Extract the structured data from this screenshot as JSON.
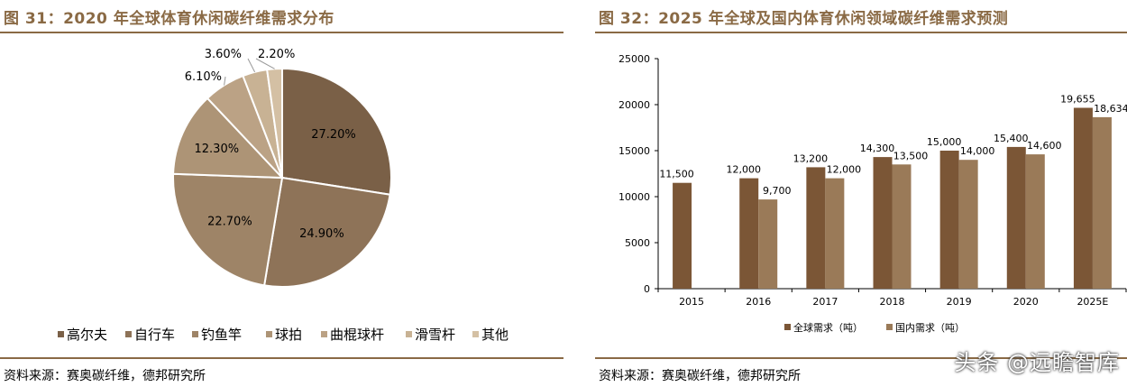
{
  "left": {
    "title": "图 31：2020 年全球体育休闲碳纤维需求分布",
    "source": "资料来源：赛奥碳纤维，德邦研究所"
  },
  "right": {
    "title": "图 32：2025 年全球及国内体育休闲领域碳纤维需求预测",
    "source": "资料来源：赛奥碳纤维，德邦研究所"
  },
  "watermark": "头条 @远瞻智库",
  "chart_data": [
    {
      "type": "pie",
      "categories": [
        "高尔夫",
        "自行车",
        "钓鱼竿",
        "球拍",
        "曲棍球杆",
        "滑雪杆",
        "其他"
      ],
      "values": [
        27.2,
        24.9,
        22.7,
        12.3,
        6.1,
        3.6,
        2.2
      ],
      "data_labels": [
        "27.20%",
        "24.90%",
        "22.70%",
        "12.30%",
        "6.10%",
        "3.60%",
        "2.20%"
      ],
      "colors": [
        "#7a6047",
        "#8e7358",
        "#9e8467",
        "#ad9476",
        "#bba285",
        "#c8b294",
        "#d4c0a4"
      ],
      "legend_position": "bottom"
    },
    {
      "type": "bar",
      "categories": [
        "2015",
        "2016",
        "2017",
        "2018",
        "2019",
        "2020",
        "2025E"
      ],
      "series": [
        {
          "name": "全球需求（吨）",
          "values": [
            11500,
            12000,
            13200,
            14300,
            15000,
            15400,
            19655
          ],
          "labels": [
            "11,500",
            "12,000",
            "13,200",
            "14,300",
            "15,000",
            "15,400",
            "19,655"
          ],
          "color": "#7b5636"
        },
        {
          "name": "国内需求（吨）",
          "values": [
            null,
            9700,
            12000,
            13500,
            14000,
            14600,
            18634
          ],
          "labels": [
            "",
            "9,700",
            "12,000",
            "13,500",
            "14,000",
            "14,600",
            "18,634"
          ],
          "color": "#9a7a58"
        }
      ],
      "ylim": [
        0,
        25000
      ],
      "yticks": [
        0,
        5000,
        10000,
        15000,
        20000,
        25000
      ],
      "ytick_labels": [
        "0",
        "5000",
        "10000",
        "15000",
        "20000",
        "25000"
      ],
      "grid": false,
      "legend_position": "bottom"
    }
  ]
}
